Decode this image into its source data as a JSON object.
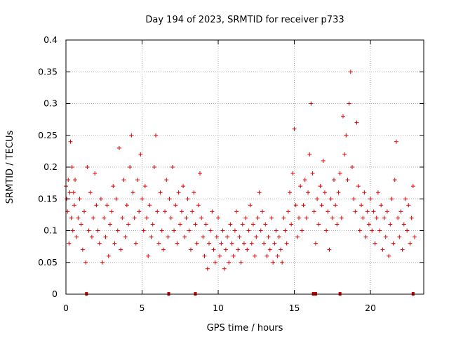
{
  "chart_data": {
    "type": "scatter",
    "title": "Day 194 of 2023, SRMTID for receiver p733",
    "xlabel": "GPS time / hours",
    "ylabel": "SRMTID / TECUs",
    "xlim": [
      0,
      23.5
    ],
    "ylim": [
      0,
      0.4
    ],
    "xticks": [
      0,
      5,
      10,
      15,
      20
    ],
    "yticks": [
      0,
      0.05,
      0.1,
      0.15,
      0.2,
      0.25,
      0.3,
      0.35,
      0.4
    ],
    "xtick_labels": [
      "0",
      "5",
      "10",
      "15",
      "20"
    ],
    "ytick_labels": [
      "0",
      "0.05",
      "0.1",
      "0.15",
      "0.2",
      "0.25",
      "0.3",
      "0.35",
      "0.4"
    ],
    "grid": true,
    "marker": "+",
    "color": "#e00000",
    "series": [
      {
        "name": "SRMTID",
        "points": [
          [
            0.0,
            0.17
          ],
          [
            0.05,
            0.15
          ],
          [
            0.1,
            0.13
          ],
          [
            0.15,
            0.18
          ],
          [
            0.2,
            0.08
          ],
          [
            0.25,
            0.16
          ],
          [
            0.3,
            0.24
          ],
          [
            0.35,
            0.12
          ],
          [
            0.4,
            0.2
          ],
          [
            0.45,
            0.1
          ],
          [
            0.5,
            0.16
          ],
          [
            0.55,
            0.14
          ],
          [
            0.6,
            0.18
          ],
          [
            0.7,
            0.09
          ],
          [
            0.8,
            0.12
          ],
          [
            0.9,
            0.15
          ],
          [
            1.0,
            0.11
          ],
          [
            1.1,
            0.07
          ],
          [
            1.2,
            0.13
          ],
          [
            1.3,
            0.05
          ],
          [
            1.4,
            0.2
          ],
          [
            1.5,
            0.1
          ],
          [
            1.6,
            0.16
          ],
          [
            1.7,
            0.09
          ],
          [
            1.8,
            0.12
          ],
          [
            1.9,
            0.19
          ],
          [
            2.0,
            0.14
          ],
          [
            2.1,
            0.1
          ],
          [
            2.2,
            0.08
          ],
          [
            2.3,
            0.15
          ],
          [
            2.4,
            0.05
          ],
          [
            2.5,
            0.12
          ],
          [
            2.6,
            0.09
          ],
          [
            2.7,
            0.14
          ],
          [
            2.8,
            0.06
          ],
          [
            2.9,
            0.11
          ],
          [
            3.0,
            0.13
          ],
          [
            3.1,
            0.17
          ],
          [
            3.2,
            0.08
          ],
          [
            3.3,
            0.15
          ],
          [
            3.4,
            0.1
          ],
          [
            3.5,
            0.23
          ],
          [
            3.6,
            0.07
          ],
          [
            3.7,
            0.12
          ],
          [
            3.8,
            0.18
          ],
          [
            3.9,
            0.09
          ],
          [
            4.0,
            0.14
          ],
          [
            4.1,
            0.11
          ],
          [
            4.2,
            0.2
          ],
          [
            4.3,
            0.25
          ],
          [
            4.4,
            0.16
          ],
          [
            4.5,
            0.12
          ],
          [
            4.6,
            0.08
          ],
          [
            4.7,
            0.18
          ],
          [
            4.8,
            0.13
          ],
          [
            4.9,
            0.22
          ],
          [
            5.0,
            0.15
          ],
          [
            5.1,
            0.1
          ],
          [
            5.2,
            0.17
          ],
          [
            5.3,
            0.12
          ],
          [
            5.4,
            0.06
          ],
          [
            5.5,
            0.14
          ],
          [
            5.6,
            0.09
          ],
          [
            5.7,
            0.11
          ],
          [
            5.8,
            0.2
          ],
          [
            5.9,
            0.25
          ],
          [
            6.0,
            0.13
          ],
          [
            6.1,
            0.08
          ],
          [
            6.2,
            0.16
          ],
          [
            6.3,
            0.1
          ],
          [
            6.4,
            0.07
          ],
          [
            6.5,
            0.13
          ],
          [
            6.6,
            0.18
          ],
          [
            6.7,
            0.09
          ],
          [
            6.8,
            0.15
          ],
          [
            6.9,
            0.12
          ],
          [
            7.0,
            0.2
          ],
          [
            7.1,
            0.1
          ],
          [
            7.2,
            0.14
          ],
          [
            7.3,
            0.08
          ],
          [
            7.4,
            0.16
          ],
          [
            7.5,
            0.11
          ],
          [
            7.6,
            0.13
          ],
          [
            7.7,
            0.17
          ],
          [
            7.8,
            0.09
          ],
          [
            7.9,
            0.12
          ],
          [
            8.0,
            0.15
          ],
          [
            8.1,
            0.1
          ],
          [
            8.2,
            0.07
          ],
          [
            8.3,
            0.13
          ],
          [
            8.4,
            0.16
          ],
          [
            8.5,
            0.11
          ],
          [
            8.6,
            0.08
          ],
          [
            8.7,
            0.14
          ],
          [
            8.8,
            0.19
          ],
          [
            8.9,
            0.12
          ],
          [
            9.0,
            0.09
          ],
          [
            9.1,
            0.06
          ],
          [
            9.2,
            0.11
          ],
          [
            9.3,
            0.04
          ],
          [
            9.4,
            0.08
          ],
          [
            9.5,
            0.1
          ],
          [
            9.6,
            0.13
          ],
          [
            9.7,
            0.07
          ],
          [
            9.8,
            0.05
          ],
          [
            9.9,
            0.09
          ],
          [
            10.0,
            0.12
          ],
          [
            10.1,
            0.06
          ],
          [
            10.2,
            0.08
          ],
          [
            10.3,
            0.1
          ],
          [
            10.4,
            0.04
          ],
          [
            10.5,
            0.07
          ],
          [
            10.6,
            0.09
          ],
          [
            10.7,
            0.05
          ],
          [
            10.8,
            0.11
          ],
          [
            10.9,
            0.08
          ],
          [
            11.0,
            0.06
          ],
          [
            11.1,
            0.1
          ],
          [
            11.2,
            0.13
          ],
          [
            11.3,
            0.07
          ],
          [
            11.4,
            0.09
          ],
          [
            11.5,
            0.05
          ],
          [
            11.6,
            0.11
          ],
          [
            11.7,
            0.08
          ],
          [
            11.8,
            0.12
          ],
          [
            11.9,
            0.07
          ],
          [
            12.0,
            0.1
          ],
          [
            12.1,
            0.14
          ],
          [
            12.2,
            0.08
          ],
          [
            12.3,
            0.11
          ],
          [
            12.4,
            0.06
          ],
          [
            12.5,
            0.09
          ],
          [
            12.6,
            0.12
          ],
          [
            12.7,
            0.16
          ],
          [
            12.8,
            0.1
          ],
          [
            12.9,
            0.13
          ],
          [
            13.0,
            0.08
          ],
          [
            13.1,
            0.11
          ],
          [
            13.2,
            0.06
          ],
          [
            13.3,
            0.09
          ],
          [
            13.4,
            0.07
          ],
          [
            13.5,
            0.12
          ],
          [
            13.6,
            0.05
          ],
          [
            13.7,
            0.08
          ],
          [
            13.8,
            0.1
          ],
          [
            13.9,
            0.06
          ],
          [
            14.0,
            0.09
          ],
          [
            14.1,
            0.07
          ],
          [
            14.2,
            0.05
          ],
          [
            14.3,
            0.12
          ],
          [
            14.4,
            0.1
          ],
          [
            14.5,
            0.08
          ],
          [
            14.6,
            0.13
          ],
          [
            14.7,
            0.16
          ],
          [
            14.8,
            0.11
          ],
          [
            14.9,
            0.19
          ],
          [
            15.0,
            0.26
          ],
          [
            15.1,
            0.14
          ],
          [
            15.2,
            0.09
          ],
          [
            15.3,
            0.12
          ],
          [
            15.4,
            0.17
          ],
          [
            15.5,
            0.1
          ],
          [
            15.6,
            0.14
          ],
          [
            15.7,
            0.18
          ],
          [
            15.8,
            0.12
          ],
          [
            15.9,
            0.16
          ],
          [
            16.0,
            0.22
          ],
          [
            16.1,
            0.3
          ],
          [
            16.2,
            0.19
          ],
          [
            16.3,
            0.13
          ],
          [
            16.4,
            0.08
          ],
          [
            16.5,
            0.15
          ],
          [
            16.6,
            0.11
          ],
          [
            16.7,
            0.17
          ],
          [
            16.8,
            0.14
          ],
          [
            16.9,
            0.21
          ],
          [
            17.0,
            0.16
          ],
          [
            17.1,
            0.1
          ],
          [
            17.2,
            0.13
          ],
          [
            17.3,
            0.07
          ],
          [
            17.4,
            0.15
          ],
          [
            17.5,
            0.12
          ],
          [
            17.6,
            0.18
          ],
          [
            17.7,
            0.14
          ],
          [
            17.8,
            0.11
          ],
          [
            17.9,
            0.16
          ],
          [
            18.0,
            0.19
          ],
          [
            18.1,
            0.12
          ],
          [
            18.2,
            0.28
          ],
          [
            18.3,
            0.22
          ],
          [
            18.4,
            0.25
          ],
          [
            18.5,
            0.18
          ],
          [
            18.6,
            0.3
          ],
          [
            18.7,
            0.35
          ],
          [
            18.8,
            0.2
          ],
          [
            18.9,
            0.15
          ],
          [
            19.0,
            0.13
          ],
          [
            19.1,
            0.27
          ],
          [
            19.2,
            0.17
          ],
          [
            19.3,
            0.1
          ],
          [
            19.4,
            0.14
          ],
          [
            19.5,
            0.12
          ],
          [
            19.6,
            0.16
          ],
          [
            19.7,
            0.09
          ],
          [
            19.8,
            0.13
          ],
          [
            19.9,
            0.11
          ],
          [
            20.0,
            0.15
          ],
          [
            20.1,
            0.1
          ],
          [
            20.2,
            0.13
          ],
          [
            20.3,
            0.08
          ],
          [
            20.4,
            0.12
          ],
          [
            20.5,
            0.16
          ],
          [
            20.6,
            0.1
          ],
          [
            20.7,
            0.14
          ],
          [
            20.8,
            0.07
          ],
          [
            20.9,
            0.12
          ],
          [
            21.0,
            0.09
          ],
          [
            21.1,
            0.13
          ],
          [
            21.2,
            0.06
          ],
          [
            21.3,
            0.11
          ],
          [
            21.4,
            0.15
          ],
          [
            21.5,
            0.08
          ],
          [
            21.6,
            0.18
          ],
          [
            21.7,
            0.24
          ],
          [
            21.8,
            0.12
          ],
          [
            21.9,
            0.09
          ],
          [
            22.0,
            0.13
          ],
          [
            22.1,
            0.07
          ],
          [
            22.2,
            0.11
          ],
          [
            22.3,
            0.15
          ],
          [
            22.4,
            0.1
          ],
          [
            22.5,
            0.14
          ],
          [
            22.6,
            0.08
          ],
          [
            22.7,
            0.12
          ],
          [
            22.8,
            0.17
          ],
          [
            22.9,
            0.09
          ]
        ]
      }
    ],
    "gaps_marked_on_axis": [
      1.35,
      6.75,
      8.5,
      16.25,
      16.4,
      18.0,
      22.8
    ]
  }
}
